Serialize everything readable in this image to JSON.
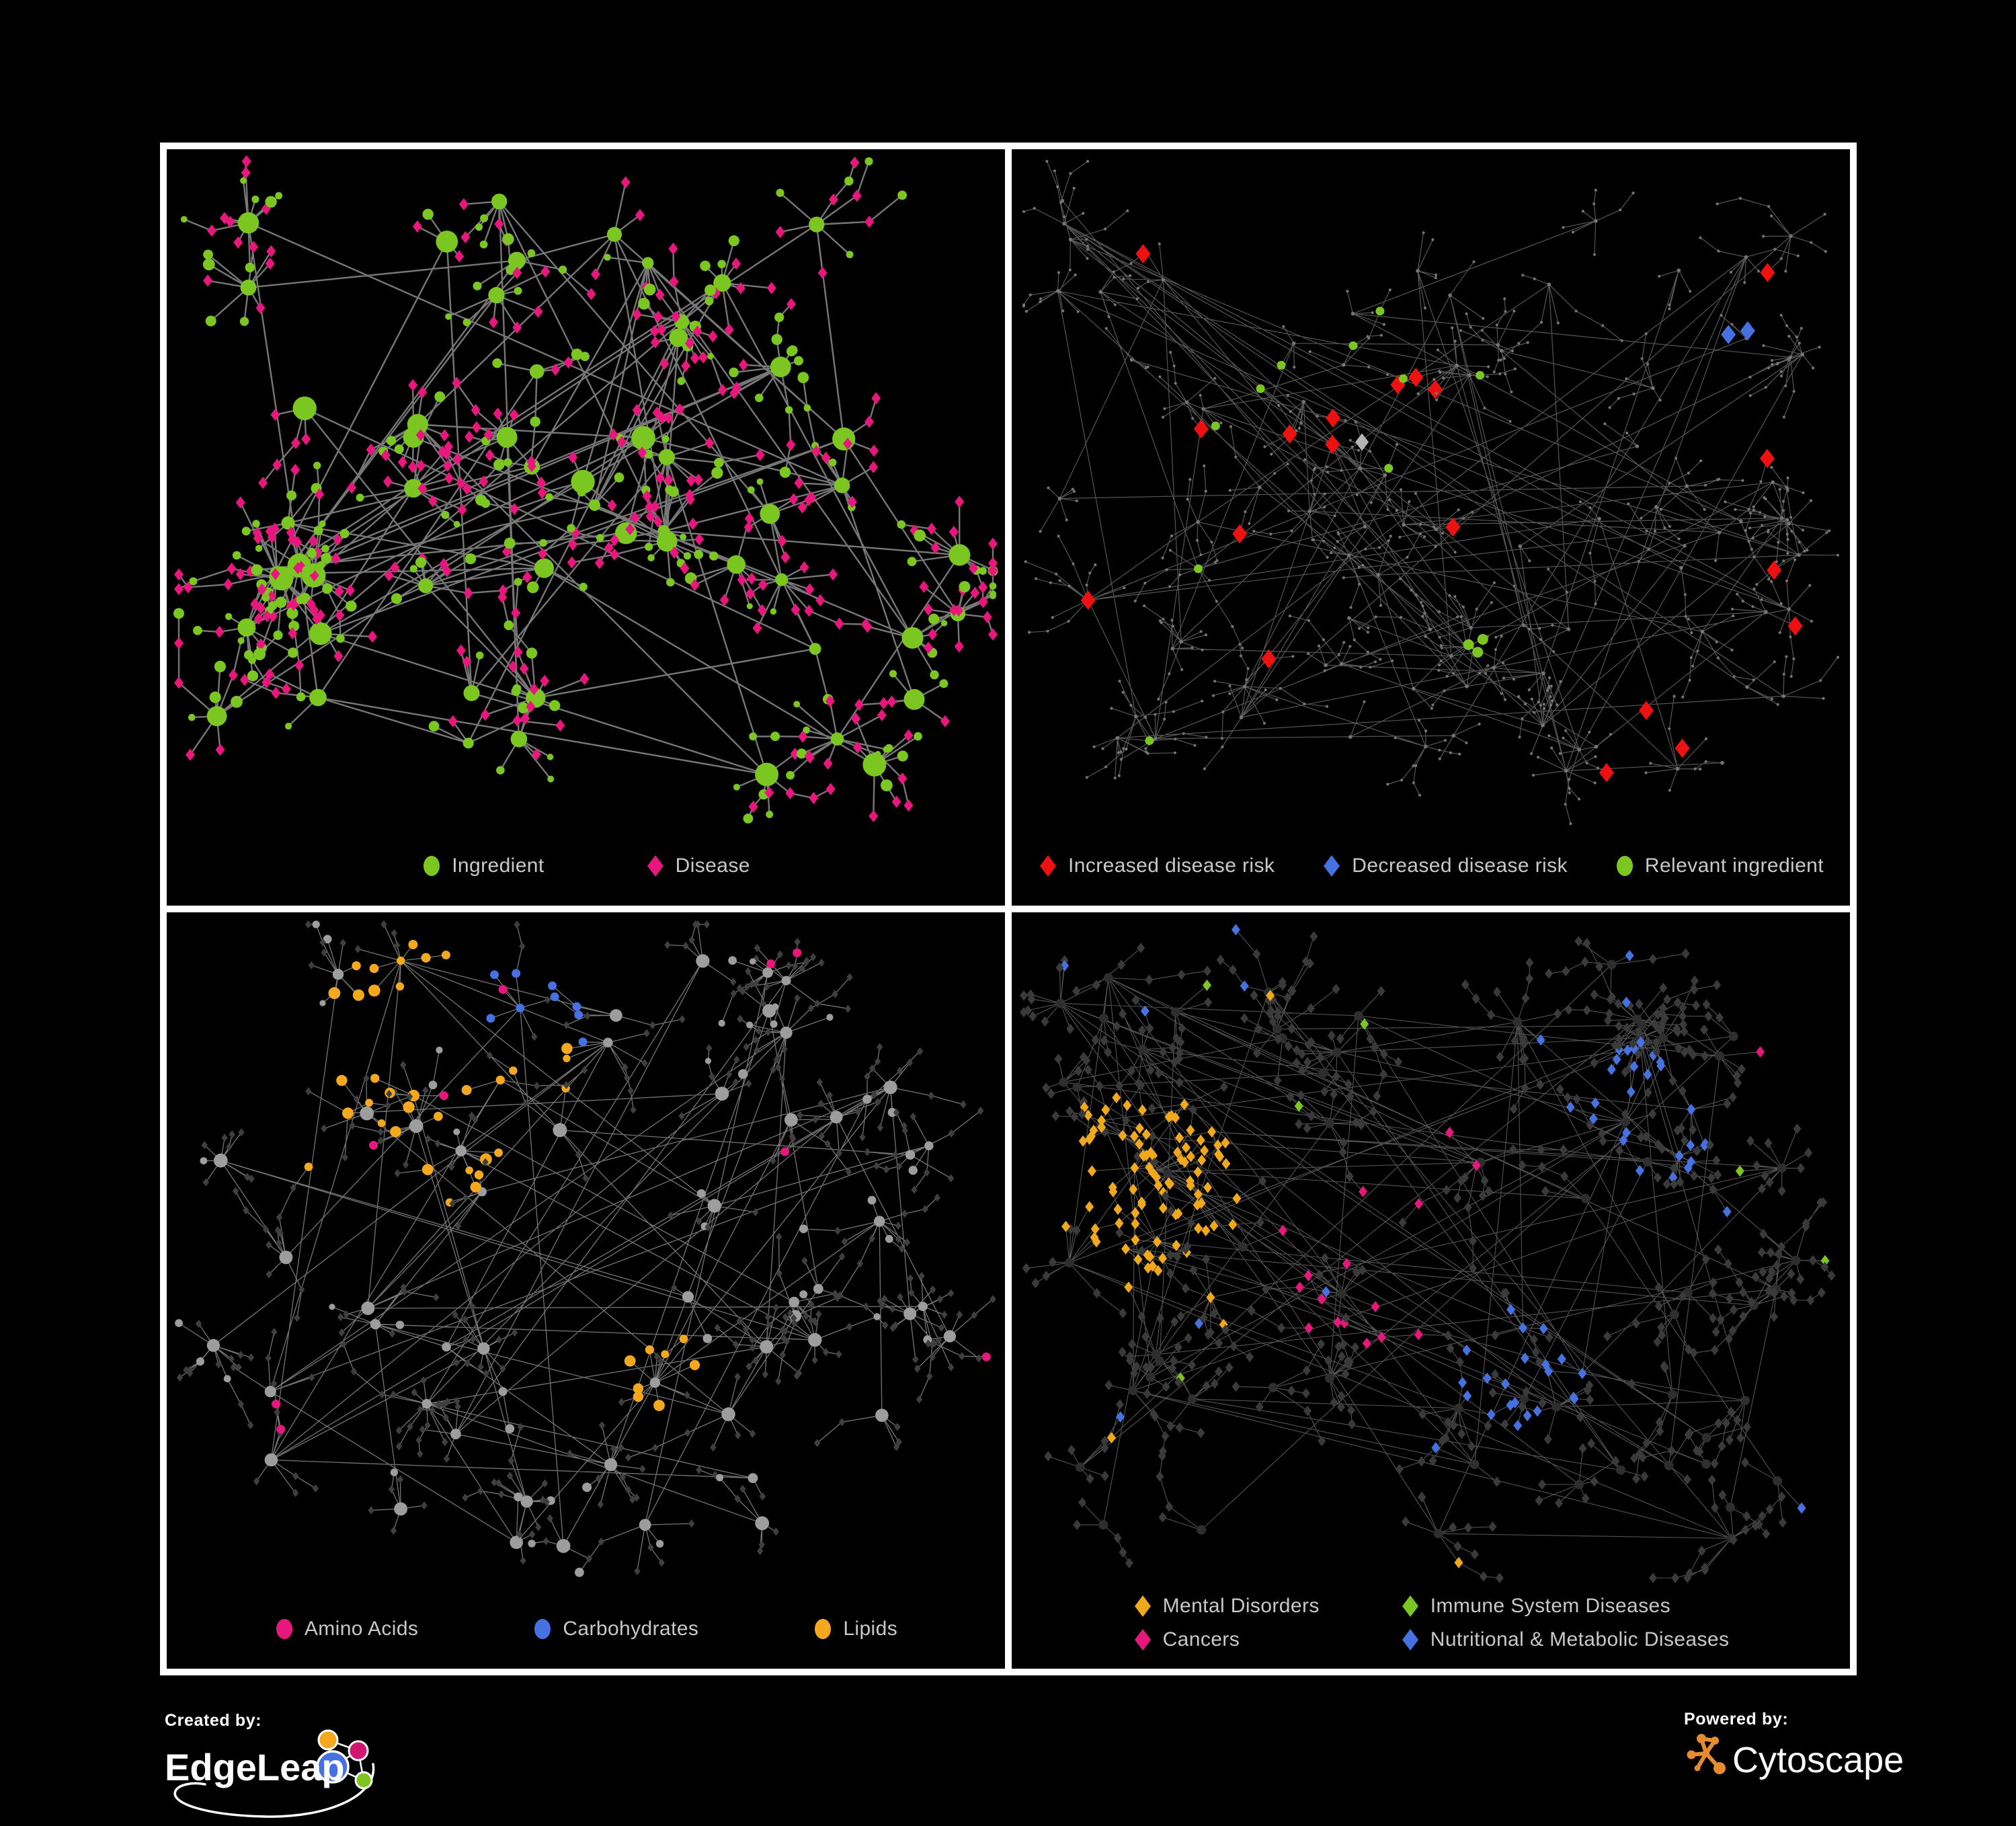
{
  "page": {
    "background": "#000000",
    "frame_border_color": "#ffffff"
  },
  "panels": [
    {
      "id": "ingredient-disease",
      "legend": [
        {
          "label": "Ingredient",
          "shape": "circle",
          "color": "#7cc622"
        },
        {
          "label": "Disease",
          "shape": "diamond",
          "color": "#e8177d"
        }
      ],
      "palette": {
        "green": "#7cc622",
        "pink": "#e8177d",
        "edge": "#7d7d7d"
      }
    },
    {
      "id": "disease-risk",
      "legend": [
        {
          "label": "Increased disease risk",
          "shape": "diamond",
          "color": "#ee1111"
        },
        {
          "label": "Decreased disease risk",
          "shape": "diamond",
          "color": "#4571e1"
        },
        {
          "label": "Relevant ingredient",
          "shape": "circle",
          "color": "#7cc622"
        }
      ],
      "palette": {
        "red": "#ee1111",
        "blue": "#4571e1",
        "green": "#7cc622",
        "gray": "#b5b5b5",
        "dot": "#757575",
        "edge": "#5e5e5e"
      }
    },
    {
      "id": "nutrient-classes",
      "legend": [
        {
          "label": "Amino Acids",
          "shape": "circle",
          "color": "#e8177d"
        },
        {
          "label": "Carbohydrates",
          "shape": "circle",
          "color": "#4571e1"
        },
        {
          "label": "Lipids",
          "shape": "circle",
          "color": "#f3a81e"
        }
      ],
      "palette": {
        "pink": "#e8177d",
        "blue": "#4571e1",
        "orange": "#f3a81e",
        "hub": "#9d9d9d",
        "leaf": "#3f3f3f",
        "edge": "#9b9b9b"
      }
    },
    {
      "id": "disease-classes",
      "legend": [
        {
          "label": "Mental Disorders",
          "shape": "diamond",
          "color": "#f0a81c"
        },
        {
          "label": "Immune System Diseases",
          "shape": "diamond",
          "color": "#7cc622"
        },
        {
          "label": "Cancers",
          "shape": "diamond",
          "color": "#e8177d"
        },
        {
          "label": "Nutritional & Metabolic Diseases",
          "shape": "diamond",
          "color": "#4571e1"
        }
      ],
      "palette": {
        "orange": "#f0a81c",
        "green": "#7cc622",
        "pink": "#e8177d",
        "blue": "#4571e1",
        "base": "#3a3a3a",
        "edge": "#8a8a8a"
      }
    }
  ],
  "footer": {
    "created_by_label": "Created by:",
    "created_by_brand": "EdgeLeap",
    "powered_by_label": "Powered by:",
    "powered_by_brand": "Cytoscape",
    "cytoscape_color": "#e78b2f",
    "edgeleap_logo_colors": {
      "blue": "#4571e1",
      "orange": "#f3a81e",
      "magenta": "#d31572",
      "green": "#7cc622"
    }
  }
}
